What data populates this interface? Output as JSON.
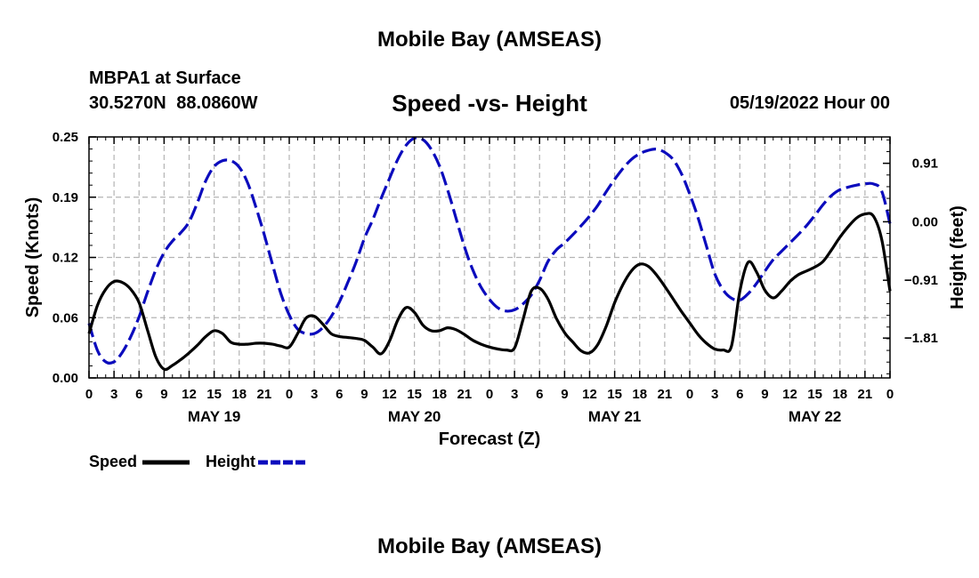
{
  "header": {
    "main_title": "Mobile Bay (AMSEAS)",
    "station": "MBPA1 at Surface",
    "coords": "30.5270N  88.0860W",
    "date": "05/19/2022 Hour 00"
  },
  "footer": {
    "title": "Mobile Bay (AMSEAS)"
  },
  "chart_data": {
    "type": "line",
    "title": "Speed -vs- Height",
    "xlabel": "Forecast (Z)",
    "ylabel": "Speed (Knots)",
    "ylabel_right": "Height (feet)",
    "x_range_hours": [
      0,
      96
    ],
    "x_tick_labels": [
      "0",
      "3",
      "6",
      "9",
      "12",
      "15",
      "18",
      "21",
      "0",
      "3",
      "6",
      "9",
      "12",
      "15",
      "18",
      "21",
      "0",
      "3",
      "6",
      "9",
      "12",
      "15",
      "18",
      "21",
      "0",
      "3",
      "6",
      "9",
      "12",
      "15",
      "18",
      "21",
      "0"
    ],
    "day_labels": [
      "MAY 19",
      "MAY 20",
      "MAY 21",
      "MAY 22"
    ],
    "ylim_left": [
      0,
      0.25
    ],
    "y_ticks_left": [
      "0.00",
      "0.06",
      "0.12",
      "0.19",
      "0.25"
    ],
    "ylim_right": [
      -2.43,
      1.32
    ],
    "y_ticks_right": [
      {
        "label": "0.91",
        "value": 0.91
      },
      {
        "label": "0.00",
        "value": 0.0
      },
      {
        "label": "−0.91",
        "value": -0.91
      },
      {
        "label": "−1.81",
        "value": -1.81
      }
    ],
    "grid": true,
    "legend_position": "bottom-left",
    "series": [
      {
        "name": "Speed",
        "axis": "left",
        "color": "#000000",
        "dash": "solid",
        "points": [
          [
            0,
            0.046
          ],
          [
            1,
            0.075
          ],
          [
            2,
            0.092
          ],
          [
            3,
            0.1
          ],
          [
            4,
            0.099
          ],
          [
            5,
            0.092
          ],
          [
            6,
            0.078
          ],
          [
            7,
            0.05
          ],
          [
            8,
            0.022
          ],
          [
            9,
            0.009
          ],
          [
            10,
            0.013
          ],
          [
            11,
            0.019
          ],
          [
            12,
            0.026
          ],
          [
            13,
            0.034
          ],
          [
            14,
            0.043
          ],
          [
            15,
            0.049
          ],
          [
            16,
            0.046
          ],
          [
            17,
            0.037
          ],
          [
            18,
            0.035
          ],
          [
            19,
            0.035
          ],
          [
            20,
            0.036
          ],
          [
            21,
            0.036
          ],
          [
            22,
            0.035
          ],
          [
            23,
            0.033
          ],
          [
            24,
            0.032
          ],
          [
            25,
            0.046
          ],
          [
            26,
            0.062
          ],
          [
            27,
            0.064
          ],
          [
            28,
            0.056
          ],
          [
            29,
            0.046
          ],
          [
            30,
            0.043
          ],
          [
            31,
            0.042
          ],
          [
            32,
            0.041
          ],
          [
            33,
            0.039
          ],
          [
            34,
            0.032
          ],
          [
            35,
            0.025
          ],
          [
            36,
            0.038
          ],
          [
            37,
            0.06
          ],
          [
            38,
            0.073
          ],
          [
            39,
            0.068
          ],
          [
            40,
            0.055
          ],
          [
            41,
            0.049
          ],
          [
            42,
            0.049
          ],
          [
            43,
            0.052
          ],
          [
            44,
            0.05
          ],
          [
            45,
            0.045
          ],
          [
            46,
            0.039
          ],
          [
            47,
            0.035
          ],
          [
            48,
            0.032
          ],
          [
            49,
            0.03
          ],
          [
            50,
            0.029
          ],
          [
            51,
            0.031
          ],
          [
            52,
            0.06
          ],
          [
            53,
            0.09
          ],
          [
            54,
            0.093
          ],
          [
            55,
            0.082
          ],
          [
            56,
            0.062
          ],
          [
            57,
            0.047
          ],
          [
            58,
            0.037
          ],
          [
            59,
            0.028
          ],
          [
            60,
            0.026
          ],
          [
            61,
            0.035
          ],
          [
            62,
            0.054
          ],
          [
            63,
            0.078
          ],
          [
            64,
            0.097
          ],
          [
            65,
            0.111
          ],
          [
            66,
            0.118
          ],
          [
            67,
            0.116
          ],
          [
            68,
            0.107
          ],
          [
            69,
            0.095
          ],
          [
            70,
            0.082
          ],
          [
            71,
            0.069
          ],
          [
            72,
            0.057
          ],
          [
            73,
            0.045
          ],
          [
            74,
            0.036
          ],
          [
            75,
            0.03
          ],
          [
            76,
            0.029
          ],
          [
            77,
            0.033
          ],
          [
            78,
            0.09
          ],
          [
            79,
            0.12
          ],
          [
            80,
            0.11
          ],
          [
            81,
            0.091
          ],
          [
            82,
            0.083
          ],
          [
            83,
            0.09
          ],
          [
            84,
            0.1
          ],
          [
            85,
            0.107
          ],
          [
            86,
            0.111
          ],
          [
            87,
            0.115
          ],
          [
            88,
            0.121
          ],
          [
            89,
            0.133
          ],
          [
            90,
            0.146
          ],
          [
            91,
            0.157
          ],
          [
            92,
            0.166
          ],
          [
            93,
            0.17
          ],
          [
            94,
            0.168
          ],
          [
            95,
            0.144
          ],
          [
            96,
            0.09
          ]
        ]
      },
      {
        "name": "Height",
        "axis": "right",
        "color": "#0b0bbd",
        "dash": "dashed",
        "points": [
          [
            0,
            -1.58
          ],
          [
            1,
            -2.0
          ],
          [
            2,
            -2.18
          ],
          [
            3,
            -2.18
          ],
          [
            4,
            -2.03
          ],
          [
            5,
            -1.79
          ],
          [
            6,
            -1.48
          ],
          [
            7,
            -1.1
          ],
          [
            8,
            -0.75
          ],
          [
            9,
            -0.48
          ],
          [
            10,
            -0.3
          ],
          [
            11,
            -0.17
          ],
          [
            12,
            0.0
          ],
          [
            13,
            0.3
          ],
          [
            14,
            0.64
          ],
          [
            15,
            0.86
          ],
          [
            16,
            0.95
          ],
          [
            17,
            0.95
          ],
          [
            18,
            0.85
          ],
          [
            19,
            0.61
          ],
          [
            20,
            0.23
          ],
          [
            21,
            -0.2
          ],
          [
            22,
            -0.67
          ],
          [
            23,
            -1.12
          ],
          [
            24,
            -1.45
          ],
          [
            25,
            -1.67
          ],
          [
            26,
            -1.74
          ],
          [
            27,
            -1.74
          ],
          [
            28,
            -1.65
          ],
          [
            29,
            -1.48
          ],
          [
            30,
            -1.25
          ],
          [
            31,
            -0.95
          ],
          [
            32,
            -0.63
          ],
          [
            33,
            -0.26
          ],
          [
            34,
            0.03
          ],
          [
            35,
            0.36
          ],
          [
            36,
            0.67
          ],
          [
            37,
            0.97
          ],
          [
            38,
            1.19
          ],
          [
            39,
            1.3
          ],
          [
            40,
            1.28
          ],
          [
            41,
            1.13
          ],
          [
            42,
            0.87
          ],
          [
            43,
            0.49
          ],
          [
            44,
            0.05
          ],
          [
            45,
            -0.39
          ],
          [
            46,
            -0.75
          ],
          [
            47,
            -1.02
          ],
          [
            48,
            -1.21
          ],
          [
            49,
            -1.34
          ],
          [
            50,
            -1.39
          ],
          [
            51,
            -1.37
          ],
          [
            52,
            -1.28
          ],
          [
            53,
            -1.14
          ],
          [
            54,
            -0.91
          ],
          [
            55,
            -0.62
          ],
          [
            56,
            -0.44
          ],
          [
            57,
            -0.33
          ],
          [
            58,
            -0.2
          ],
          [
            59,
            -0.06
          ],
          [
            60,
            0.09
          ],
          [
            61,
            0.26
          ],
          [
            62,
            0.47
          ],
          [
            63,
            0.66
          ],
          [
            64,
            0.83
          ],
          [
            65,
            0.97
          ],
          [
            66,
            1.06
          ],
          [
            67,
            1.11
          ],
          [
            68,
            1.13
          ],
          [
            69,
            1.08
          ],
          [
            70,
            0.97
          ],
          [
            71,
            0.75
          ],
          [
            72,
            0.43
          ],
          [
            73,
            0.06
          ],
          [
            74,
            -0.38
          ],
          [
            75,
            -0.81
          ],
          [
            76,
            -1.06
          ],
          [
            77,
            -1.19
          ],
          [
            78,
            -1.22
          ],
          [
            79,
            -1.12
          ],
          [
            80,
            -0.96
          ],
          [
            81,
            -0.77
          ],
          [
            82,
            -0.59
          ],
          [
            83,
            -0.46
          ],
          [
            84,
            -0.33
          ],
          [
            85,
            -0.2
          ],
          [
            86,
            -0.06
          ],
          [
            87,
            0.1
          ],
          [
            88,
            0.27
          ],
          [
            89,
            0.41
          ],
          [
            90,
            0.5
          ],
          [
            91,
            0.54
          ],
          [
            92,
            0.57
          ],
          [
            93,
            0.59
          ],
          [
            94,
            0.59
          ],
          [
            95,
            0.48
          ],
          [
            96,
            -0.03
          ]
        ]
      }
    ]
  }
}
